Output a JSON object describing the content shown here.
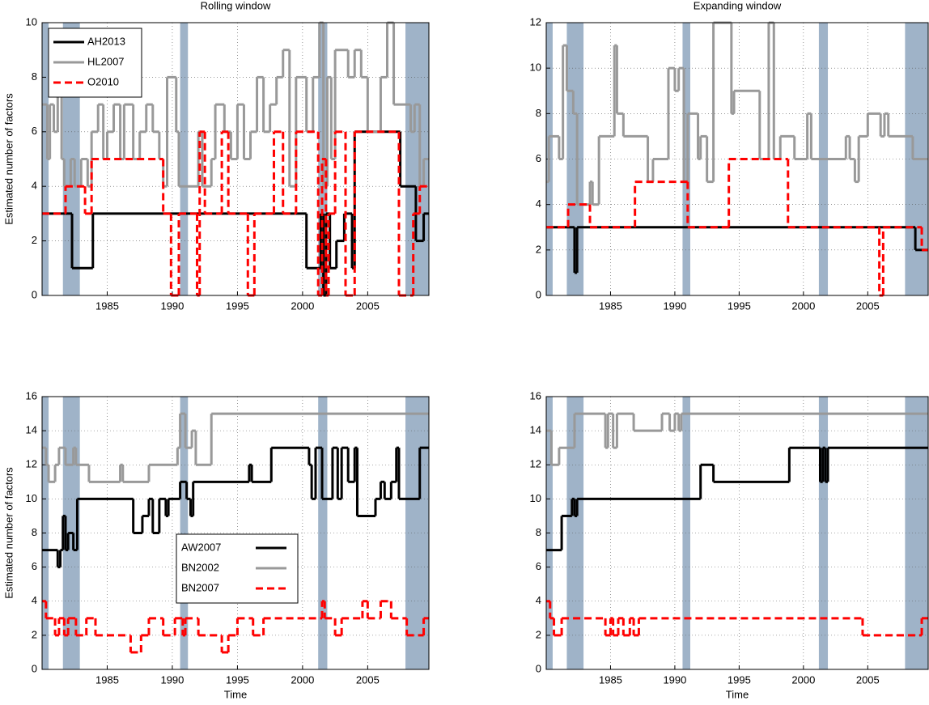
{
  "chart_data": [
    {
      "type": "step",
      "title": "Rolling window",
      "ylabel": "Estimated number of factors",
      "xlim": [
        1980,
        2009.7
      ],
      "xticks": [
        1985,
        1990,
        1995,
        2000,
        2005
      ],
      "ylim": [
        0,
        10
      ],
      "yticks": [
        0,
        2,
        4,
        6,
        8,
        10
      ],
      "grid": true,
      "legend": "upper left",
      "shaded_periods": [
        [
          1980,
          1980.5
        ],
        [
          1981.6,
          1982.9
        ],
        [
          1990.6,
          1991.2
        ],
        [
          2001.2,
          2001.9
        ],
        [
          2007.9,
          2009.7
        ]
      ],
      "shade_color": "#9fb3c8",
      "series": [
        {
          "name": "AH2013",
          "color": "#000000",
          "dash": false,
          "x": [
            1980,
            1982.3,
            1983.9,
            2000.3,
            2001.4,
            2001.6,
            2001.8,
            2002.1,
            2002.6,
            2003.2,
            2003.8,
            2004.0,
            2007.5,
            2008.7,
            2009.3
          ],
          "values": [
            3,
            1,
            3,
            1,
            3,
            0,
            3,
            1,
            2,
            3,
            1,
            6,
            4,
            2,
            3
          ]
        },
        {
          "name": "HL2007",
          "color": "#999999",
          "dash": false,
          "x": [
            1980,
            1980.4,
            1980.6,
            1980.9,
            1981.2,
            1981.5,
            1981.7,
            1982.2,
            1982.5,
            1983,
            1983.5,
            1983.8,
            1984.3,
            1984.7,
            1985,
            1985.5,
            1986,
            1986.3,
            1987,
            1987.5,
            1988,
            1988.5,
            1989,
            1989.3,
            1989.6,
            1990.3,
            1990.5,
            1992.0,
            1992.3,
            1993,
            1993.3,
            1994,
            1994.5,
            1995,
            1995.5,
            1996.0,
            1996.5,
            1997,
            1997.5,
            1998,
            1998.5,
            1999,
            1999.5,
            2000.3,
            2000.8,
            2001.3,
            2001.6,
            2001.9,
            2002.2,
            2002.5,
            2003.5,
            2004.0,
            2004.5,
            2005,
            2006,
            2006.5,
            2007,
            2008.3,
            2008.6,
            2009,
            2009.3
          ],
          "values": [
            7,
            5,
            7,
            6,
            8,
            5,
            4,
            5,
            4,
            5,
            4,
            6,
            7,
            5,
            6,
            7,
            5,
            7,
            5,
            6,
            7,
            6,
            5,
            4,
            8,
            6,
            4,
            6,
            4,
            5,
            7,
            6,
            5,
            7,
            5,
            6,
            8,
            6,
            7,
            8,
            9,
            4,
            8,
            6,
            8,
            10,
            4,
            8,
            5,
            9,
            8,
            9,
            8,
            6,
            8,
            10,
            7,
            6,
            7,
            4,
            5
          ]
        },
        {
          "name": "O2010",
          "color": "#ff0000",
          "dash": true,
          "x": [
            1980,
            1981.8,
            1983.3,
            1983.8,
            1989.3,
            1989.9,
            1990.5,
            1991.9,
            1992.1,
            1992.5,
            1993.8,
            1994.3,
            1995.8,
            1996.3,
            1997.8,
            1998.5,
            1999.5,
            2001.2,
            2001.5,
            2001.8,
            2002.0,
            2002.5,
            2003.3,
            2004.0,
            2007.4,
            2008.5,
            2009
          ],
          "values": [
            3,
            4,
            3,
            5,
            3,
            0,
            3,
            0,
            6,
            3,
            6,
            3,
            0,
            3,
            6,
            3,
            6,
            0,
            5,
            0,
            3,
            6,
            0,
            6,
            0,
            3,
            4
          ]
        }
      ]
    },
    {
      "type": "step",
      "title": "Expanding window",
      "xlim": [
        1980,
        2009.7
      ],
      "xticks": [
        1985,
        1990,
        1995,
        2000,
        2005
      ],
      "ylim": [
        0,
        12
      ],
      "yticks": [
        0,
        2,
        4,
        6,
        8,
        10,
        12
      ],
      "grid": true,
      "shaded_periods": [
        [
          1980,
          1980.5
        ],
        [
          1981.6,
          1982.9
        ],
        [
          1990.6,
          1991.2
        ],
        [
          2001.2,
          2001.9
        ],
        [
          2007.9,
          2009.7
        ]
      ],
      "shade_color": "#9fb3c8",
      "series": [
        {
          "name": "AH2013",
          "color": "#000000",
          "dash": false,
          "x": [
            1980,
            1982.2,
            1982.4,
            2008.7
          ],
          "values": [
            3,
            1,
            3,
            2
          ]
        },
        {
          "name": "HL2007",
          "color": "#999999",
          "dash": false,
          "x": [
            1980,
            1980.2,
            1981,
            1981.3,
            1981.6,
            1982.1,
            1982.4,
            1983.4,
            1983.6,
            1984.1,
            1985.3,
            1985.5,
            1986,
            1987.9,
            1988.3,
            1989.5,
            1990,
            1990.3,
            1990.7,
            1991,
            1991.8,
            1992,
            1992.5,
            1993,
            1994.4,
            1994.6,
            1996.6,
            1997.3,
            1997.7,
            1998.2,
            1999.3,
            2000.3,
            2000.6,
            2003.3,
            2003.6,
            2004,
            2004.3,
            2005,
            2006,
            2006.3,
            2006.6,
            2008.5
          ],
          "values": [
            5,
            7,
            6,
            11,
            9,
            8,
            4,
            5,
            4,
            7,
            11,
            8,
            7,
            5,
            6,
            10,
            9,
            10,
            5,
            8,
            6,
            7,
            5,
            12,
            8,
            9,
            6,
            12,
            6,
            7,
            6,
            8,
            6,
            7,
            6,
            5,
            7,
            8,
            7,
            8,
            7,
            6
          ]
        },
        {
          "name": "O2010",
          "color": "#ff0000",
          "dash": true,
          "x": [
            1980,
            1981.7,
            1983.4,
            1986.9,
            1991.0,
            1994.2,
            1998.8,
            2005.9,
            2006.2,
            2009.2
          ],
          "values": [
            3,
            4,
            3,
            5,
            3,
            6,
            3,
            0,
            3,
            2
          ]
        }
      ]
    },
    {
      "type": "step",
      "ylabel": "Estimated number of factors",
      "xlabel": "Time",
      "xlim": [
        1980,
        2009.7
      ],
      "xticks": [
        1985,
        1990,
        1995,
        2000,
        2005
      ],
      "ylim": [
        0,
        16
      ],
      "yticks": [
        0,
        2,
        4,
        6,
        8,
        10,
        12,
        14,
        16
      ],
      "grid": true,
      "legend": "lower center",
      "shaded_periods": [
        [
          1980,
          1980.5
        ],
        [
          1981.6,
          1982.9
        ],
        [
          1990.6,
          1991.2
        ],
        [
          2001.2,
          2001.9
        ],
        [
          2007.9,
          2009.7
        ]
      ],
      "shade_color": "#9fb3c8",
      "series": [
        {
          "name": "AW2007",
          "color": "#000000",
          "dash": false,
          "x": [
            1980,
            1981.2,
            1981.4,
            1981.6,
            1981.8,
            1982,
            1982.4,
            1982.7,
            1987,
            1987.7,
            1988.2,
            1988.5,
            1989,
            1989.5,
            1989.7,
            1990.6,
            1991.1,
            1991.4,
            1991.6,
            1995.9,
            1996.1,
            1997.6,
            2000.5,
            2000.7,
            2001,
            2001.5,
            2002.3,
            2002.7,
            2003,
            2003.5,
            2004,
            2004.2,
            2005.6,
            2006,
            2006.3,
            2006.8,
            2007.2,
            2007.4,
            2009
          ],
          "values": [
            7,
            6,
            7,
            9,
            7,
            8,
            7,
            10,
            8,
            9,
            10,
            8,
            10,
            9,
            10,
            11,
            10,
            9,
            11,
            12,
            11,
            13,
            12,
            10,
            13,
            10,
            13,
            10,
            13,
            11,
            13,
            9,
            10,
            11,
            10,
            11,
            13,
            10,
            13
          ]
        },
        {
          "name": "BN2002",
          "color": "#999999",
          "dash": false,
          "x": [
            1980,
            1980.3,
            1980.5,
            1981,
            1981.3,
            1981.8,
            1982.4,
            1982.6,
            1983.6,
            1986,
            1986.2,
            1988.2,
            1990.4,
            1990.6,
            1991,
            1991.5,
            1991.8,
            1993
          ],
          "values": [
            13,
            12,
            11,
            12,
            13,
            12,
            13,
            12,
            11,
            12,
            11,
            12,
            13,
            15,
            13,
            14,
            12,
            15
          ]
        },
        {
          "name": "BN2007",
          "color": "#ff0000",
          "dash": true,
          "x": [
            1980,
            1980.3,
            1981,
            1981.3,
            1981.7,
            1982,
            1982.6,
            1983.4,
            1984.1,
            1986.8,
            1987.6,
            1988.2,
            1989.3,
            1990.2,
            1990.8,
            1991,
            1992,
            1993.8,
            1994.3,
            1995,
            1996.2,
            1997,
            2001.5,
            2001.7,
            2002.5,
            2003,
            2004.6,
            2005,
            2006,
            2006.8,
            2008,
            2009.3
          ],
          "values": [
            4,
            3,
            2,
            3,
            2,
            3,
            2,
            3,
            2,
            1,
            2,
            3,
            2,
            3,
            2,
            3,
            2,
            1,
            2,
            3,
            2,
            3,
            4,
            3,
            2,
            3,
            4,
            3,
            4,
            3,
            2,
            3
          ]
        }
      ]
    },
    {
      "type": "step",
      "xlabel": "Time",
      "xlim": [
        1980,
        2009.7
      ],
      "xticks": [
        1985,
        1990,
        1995,
        2000,
        2005
      ],
      "ylim": [
        0,
        16
      ],
      "yticks": [
        0,
        2,
        4,
        6,
        8,
        10,
        12,
        14,
        16
      ],
      "grid": true,
      "shaded_periods": [
        [
          1980,
          1980.5
        ],
        [
          1981.6,
          1982.9
        ],
        [
          1990.6,
          1991.2
        ],
        [
          2001.2,
          2001.9
        ],
        [
          2007.9,
          2009.7
        ]
      ],
      "shade_color": "#9fb3c8",
      "series": [
        {
          "name": "AW2007",
          "color": "#000000",
          "dash": false,
          "x": [
            1980,
            1981.2,
            1982,
            1982.2,
            1982.4,
            1992,
            1993,
            1998.9,
            2001.3,
            2001.5,
            2001.7,
            2001.9
          ],
          "values": [
            7,
            9,
            10,
            9,
            10,
            12,
            11,
            13,
            11,
            13,
            11,
            13
          ]
        },
        {
          "name": "BN2002",
          "color": "#999999",
          "dash": false,
          "x": [
            1980,
            1980.4,
            1981,
            1982.2,
            1984.6,
            1984.8,
            1985.2,
            1985.5,
            1986.8,
            1989,
            1989.6,
            1990,
            1990.3,
            1990.5
          ],
          "values": [
            14,
            12,
            13,
            15,
            13,
            15,
            13,
            15,
            14,
            15,
            14,
            15,
            14,
            15
          ]
        },
        {
          "name": "BN2007",
          "color": "#ff0000",
          "dash": true,
          "x": [
            1980,
            1980.3,
            1980.6,
            1981.2,
            1984.6,
            1985,
            1985.2,
            1985.6,
            1986,
            1986.5,
            1986.8,
            1987.2,
            2004.6,
            2009.2
          ],
          "values": [
            4,
            3,
            2,
            3,
            2,
            3,
            2,
            3,
            2,
            3,
            2,
            3,
            2,
            3
          ]
        }
      ]
    }
  ]
}
